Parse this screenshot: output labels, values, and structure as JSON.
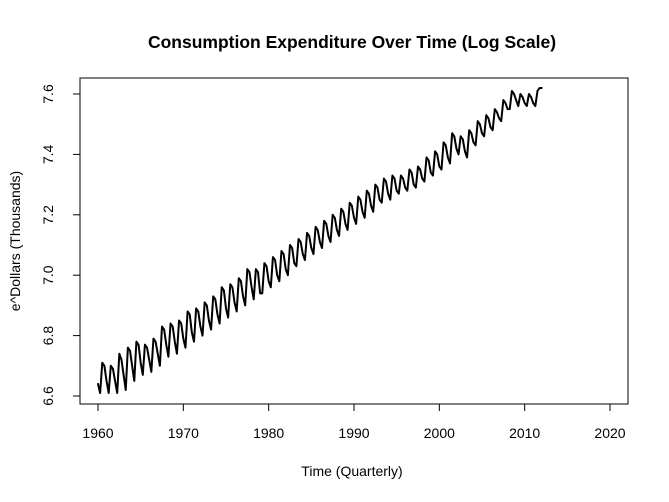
{
  "chart_data": {
    "type": "line",
    "title": "Consumption Expenditure Over Time (Log Scale)",
    "xlabel": "Time (Quarterly)",
    "ylabel": "e^Dollars (Thousands)",
    "xlim": [
      1960,
      2020
    ],
    "ylim": [
      6.6,
      7.62
    ],
    "x_ticks": [
      1960,
      1970,
      1980,
      1990,
      2000,
      2010,
      2020
    ],
    "x_tick_labels": [
      "1960",
      "1970",
      "1980",
      "1990",
      "2000",
      "2010",
      "2020"
    ],
    "y_ticks": [
      6.6,
      6.8,
      7.0,
      7.2,
      7.4,
      7.6
    ],
    "y_tick_labels": [
      "6.6",
      "6.8",
      "7.0",
      "7.2",
      "7.4",
      "7.6"
    ],
    "grid": false,
    "legend": "none",
    "frequency": "quarterly",
    "line_color": "#000000",
    "series": [
      {
        "x_start": 1960,
        "x_step": 0.25,
        "values": [
          6.64,
          6.61,
          6.71,
          6.7,
          6.65,
          6.61,
          6.7,
          6.69,
          6.65,
          6.61,
          6.74,
          6.72,
          6.67,
          6.62,
          6.76,
          6.75,
          6.7,
          6.65,
          6.78,
          6.77,
          6.71,
          6.67,
          6.77,
          6.76,
          6.72,
          6.68,
          6.79,
          6.78,
          6.74,
          6.7,
          6.83,
          6.82,
          6.77,
          6.73,
          6.84,
          6.83,
          6.78,
          6.74,
          6.85,
          6.84,
          6.79,
          6.76,
          6.88,
          6.87,
          6.81,
          6.78,
          6.89,
          6.88,
          6.83,
          6.8,
          6.91,
          6.9,
          6.85,
          6.82,
          6.93,
          6.92,
          6.87,
          6.84,
          6.96,
          6.95,
          6.89,
          6.86,
          6.97,
          6.96,
          6.91,
          6.88,
          6.99,
          6.98,
          6.93,
          6.9,
          7.02,
          7.01,
          6.96,
          6.92,
          7.02,
          7.01,
          6.94,
          6.94,
          7.04,
          7.03,
          6.98,
          6.96,
          7.06,
          7.05,
          7.0,
          6.98,
          7.08,
          7.07,
          7.02,
          7.0,
          7.1,
          7.09,
          7.04,
          7.03,
          7.12,
          7.11,
          7.07,
          7.05,
          7.14,
          7.13,
          7.09,
          7.07,
          7.16,
          7.15,
          7.11,
          7.09,
          7.18,
          7.17,
          7.13,
          7.11,
          7.2,
          7.19,
          7.15,
          7.13,
          7.22,
          7.21,
          7.17,
          7.15,
          7.24,
          7.23,
          7.19,
          7.17,
          7.26,
          7.25,
          7.21,
          7.19,
          7.28,
          7.27,
          7.23,
          7.21,
          7.3,
          7.29,
          7.25,
          7.24,
          7.32,
          7.31,
          7.27,
          7.25,
          7.33,
          7.32,
          7.28,
          7.27,
          7.33,
          7.32,
          7.29,
          7.28,
          7.35,
          7.34,
          7.3,
          7.29,
          7.36,
          7.35,
          7.32,
          7.31,
          7.39,
          7.38,
          7.34,
          7.33,
          7.41,
          7.4,
          7.36,
          7.35,
          7.44,
          7.43,
          7.39,
          7.37,
          7.47,
          7.46,
          7.42,
          7.4,
          7.46,
          7.45,
          7.41,
          7.39,
          7.48,
          7.47,
          7.44,
          7.43,
          7.51,
          7.5,
          7.47,
          7.46,
          7.53,
          7.52,
          7.49,
          7.48,
          7.55,
          7.54,
          7.52,
          7.51,
          7.58,
          7.57,
          7.55,
          7.55,
          7.61,
          7.6,
          7.58,
          7.56,
          7.6,
          7.59,
          7.57,
          7.56,
          7.6,
          7.59,
          7.57,
          7.56,
          7.61,
          7.62,
          7.62
        ]
      }
    ]
  }
}
